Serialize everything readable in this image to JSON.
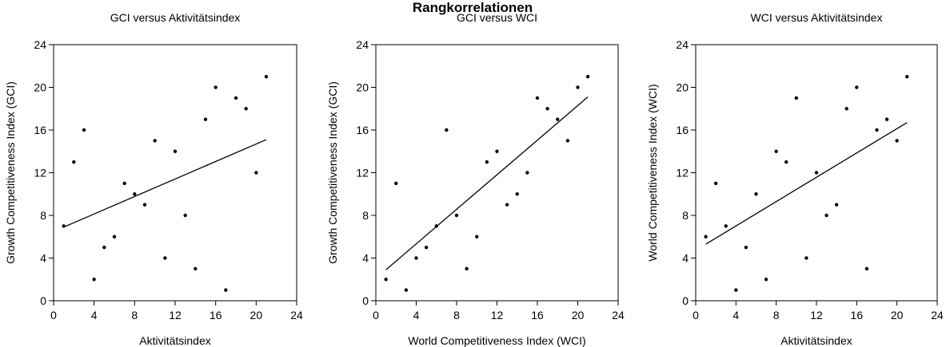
{
  "figure_title": "Rangkorrelationen",
  "chart_data": [
    {
      "type": "scatter",
      "title": "GCI versus Aktivitätsindex",
      "xlabel": "Aktivitätsindex",
      "ylabel": "Growth Competitiveness Index (GCI)",
      "xlim": [
        0,
        24
      ],
      "ylim": [
        0,
        24
      ],
      "xticks": [
        0,
        4,
        8,
        12,
        16,
        20,
        24
      ],
      "yticks": [
        0,
        4,
        8,
        12,
        16,
        20,
        24
      ],
      "points": [
        [
          1,
          7
        ],
        [
          2,
          13
        ],
        [
          3,
          16
        ],
        [
          4,
          2
        ],
        [
          5,
          5
        ],
        [
          6,
          6
        ],
        [
          7,
          11
        ],
        [
          8,
          10
        ],
        [
          9,
          9
        ],
        [
          10,
          15
        ],
        [
          11,
          4
        ],
        [
          12,
          14
        ],
        [
          13,
          8
        ],
        [
          14,
          3
        ],
        [
          15,
          17
        ],
        [
          16,
          20
        ],
        [
          17,
          1
        ],
        [
          18,
          19
        ],
        [
          19,
          18
        ],
        [
          20,
          12
        ],
        [
          21,
          21
        ]
      ],
      "fit_line": [
        [
          1,
          6.9
        ],
        [
          21,
          15.1
        ]
      ]
    },
    {
      "type": "scatter",
      "title": "GCI versus WCI",
      "xlabel": "World Competitiveness Index (WCI)",
      "ylabel": "Growth Competitiveness Index (GCI)",
      "xlim": [
        0,
        24
      ],
      "ylim": [
        0,
        24
      ],
      "xticks": [
        0,
        4,
        8,
        12,
        16,
        20,
        24
      ],
      "yticks": [
        0,
        4,
        8,
        12,
        16,
        20,
        24
      ],
      "points": [
        [
          1,
          2
        ],
        [
          2,
          11
        ],
        [
          3,
          1
        ],
        [
          4,
          4
        ],
        [
          5,
          5
        ],
        [
          6,
          7
        ],
        [
          7,
          16
        ],
        [
          8,
          8
        ],
        [
          9,
          3
        ],
        [
          10,
          6
        ],
        [
          11,
          13
        ],
        [
          12,
          14
        ],
        [
          13,
          9
        ],
        [
          14,
          10
        ],
        [
          15,
          12
        ],
        [
          16,
          19
        ],
        [
          17,
          18
        ],
        [
          18,
          17
        ],
        [
          19,
          15
        ],
        [
          20,
          20
        ],
        [
          21,
          21
        ]
      ],
      "fit_line": [
        [
          1,
          2.9
        ],
        [
          21,
          19.1
        ]
      ]
    },
    {
      "type": "scatter",
      "title": "WCI versus Aktivitätsindex",
      "xlabel": "Aktivitätsindex",
      "ylabel": "World Competitiveness Index (WCI)",
      "xlim": [
        0,
        24
      ],
      "ylim": [
        0,
        24
      ],
      "xticks": [
        0,
        4,
        8,
        12,
        16,
        20,
        24
      ],
      "yticks": [
        0,
        4,
        8,
        12,
        16,
        20,
        24
      ],
      "points": [
        [
          1,
          6
        ],
        [
          2,
          11
        ],
        [
          3,
          7
        ],
        [
          4,
          1
        ],
        [
          5,
          5
        ],
        [
          6,
          10
        ],
        [
          7,
          2
        ],
        [
          8,
          14
        ],
        [
          9,
          13
        ],
        [
          10,
          19
        ],
        [
          11,
          4
        ],
        [
          12,
          12
        ],
        [
          13,
          8
        ],
        [
          14,
          9
        ],
        [
          15,
          18
        ],
        [
          16,
          20
        ],
        [
          17,
          3
        ],
        [
          18,
          16
        ],
        [
          19,
          17
        ],
        [
          20,
          15
        ],
        [
          21,
          21
        ]
      ],
      "fit_line": [
        [
          1,
          5.3
        ],
        [
          21,
          16.7
        ]
      ]
    }
  ]
}
